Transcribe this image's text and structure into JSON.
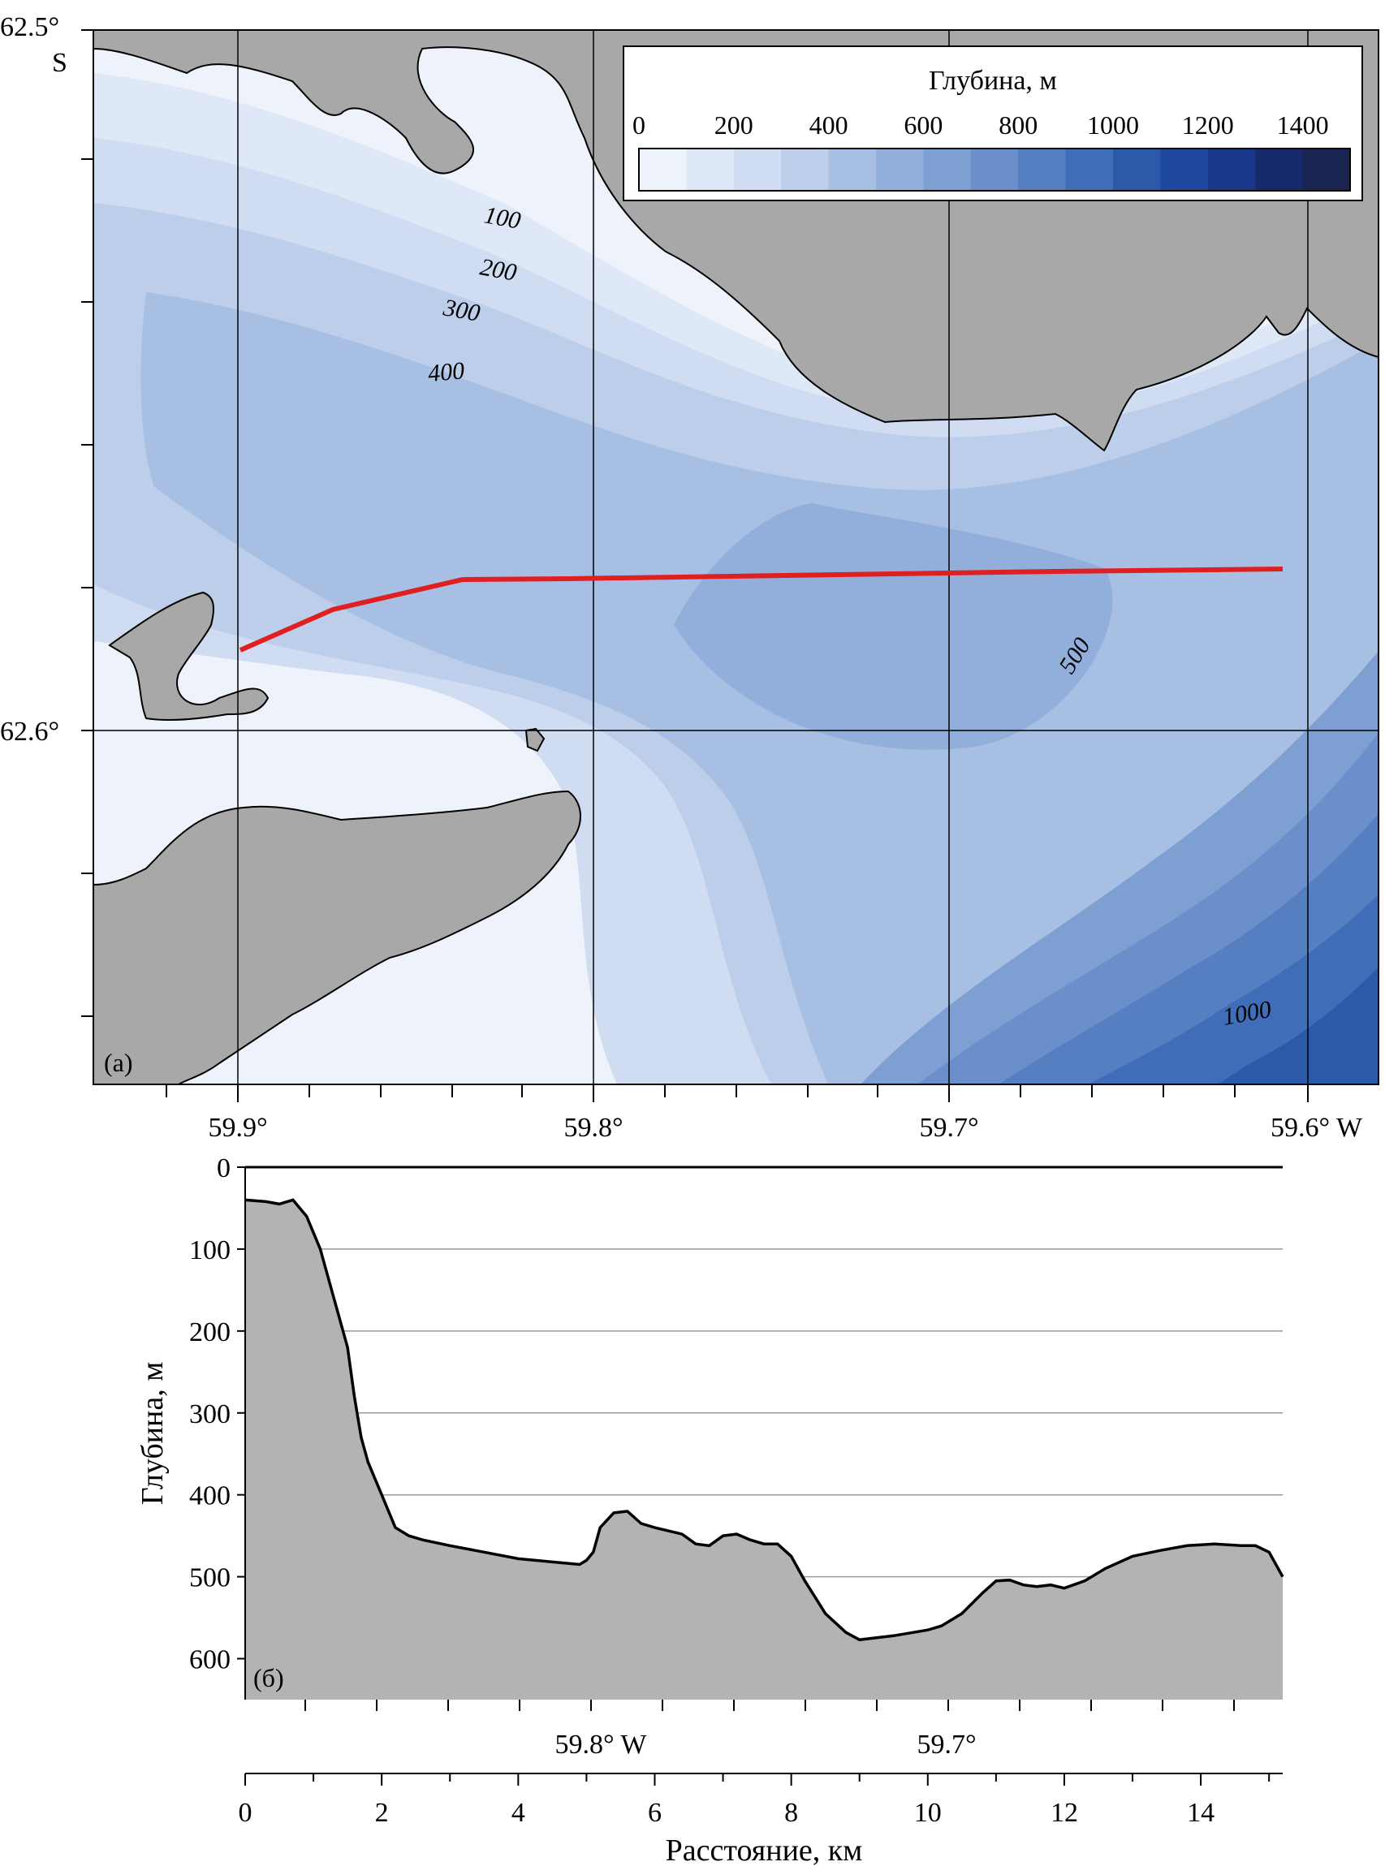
{
  "map": {
    "panel_label": "(а)",
    "lat_labels": [
      "62.5°",
      "62.6°"
    ],
    "lat_hemisphere": "S",
    "lon_labels": [
      "59.9°",
      "59.8°",
      "59.7°"
    ],
    "lon_label_last": "59.6° W",
    "contour_labels": [
      "100",
      "200",
      "300",
      "400",
      "500",
      "1000"
    ],
    "legend": {
      "title": "Глубина, м",
      "ticks": [
        "0",
        "200",
        "400",
        "600",
        "800",
        "1000",
        "1200",
        "1400"
      ],
      "colors": [
        "#eef3fb",
        "#dfe8f6",
        "#d0dcf1",
        "#bccee9",
        "#a7bfe3",
        "#92afdb",
        "#7d9fd2",
        "#6a8fca",
        "#557fc1",
        "#3f6db7",
        "#2b5aab",
        "#1e489d",
        "#18378a",
        "#182a6e",
        "#1a2450"
      ]
    },
    "land_color": "#a8a8a8",
    "transect_color": "#e02020"
  },
  "profile": {
    "panel_label": "(б)",
    "ylabel": "Глубина, м",
    "xlabel": "Расстояние, км",
    "y_ticks": [
      "0",
      "100",
      "200",
      "300",
      "400",
      "500",
      "600"
    ],
    "x_ticks": [
      "0",
      "2",
      "4",
      "6",
      "8",
      "10",
      "12",
      "14"
    ],
    "lon_ticks": [
      "59.8° W",
      "59.7°"
    ]
  },
  "chart_data": {
    "type": "area",
    "title": "",
    "xlabel": "Расстояние, км",
    "ylabel": "Глубина, м",
    "xlim": [
      0,
      15.2
    ],
    "ylim": [
      0,
      650
    ],
    "y_inverted": true,
    "grid": true,
    "series": [
      {
        "x": [
          0,
          0.3,
          0.5,
          0.7,
          0.9,
          1.1,
          1.3,
          1.5,
          1.6,
          1.7,
          1.8,
          2.0,
          2.2,
          2.4,
          2.6,
          3.0,
          3.5,
          4.0,
          4.5,
          4.9,
          5.0,
          5.1,
          5.2,
          5.4,
          5.6,
          5.8,
          6.0,
          6.2,
          6.4,
          6.6,
          6.8,
          7.0,
          7.2,
          7.4,
          7.6,
          7.8,
          8.0,
          8.2,
          8.5,
          8.8,
          9.0,
          9.2,
          9.5,
          10.0,
          10.2,
          10.5,
          10.8,
          11.0,
          11.2,
          11.4,
          11.6,
          11.8,
          12.0,
          12.3,
          12.6,
          13.0,
          13.4,
          13.8,
          14.2,
          14.6,
          14.8,
          15.0,
          15.2
        ],
        "y": [
          40,
          42,
          45,
          40,
          60,
          100,
          160,
          220,
          280,
          330,
          360,
          400,
          440,
          450,
          455,
          462,
          470,
          478,
          482,
          485,
          480,
          470,
          440,
          422,
          420,
          435,
          440,
          444,
          448,
          460,
          462,
          450,
          448,
          455,
          460,
          460,
          475,
          505,
          545,
          568,
          577,
          575,
          572,
          565,
          560,
          545,
          520,
          505,
          504,
          510,
          512,
          510,
          514,
          505,
          490,
          475,
          468,
          462,
          460,
          462,
          462,
          470,
          500
        ]
      }
    ]
  }
}
